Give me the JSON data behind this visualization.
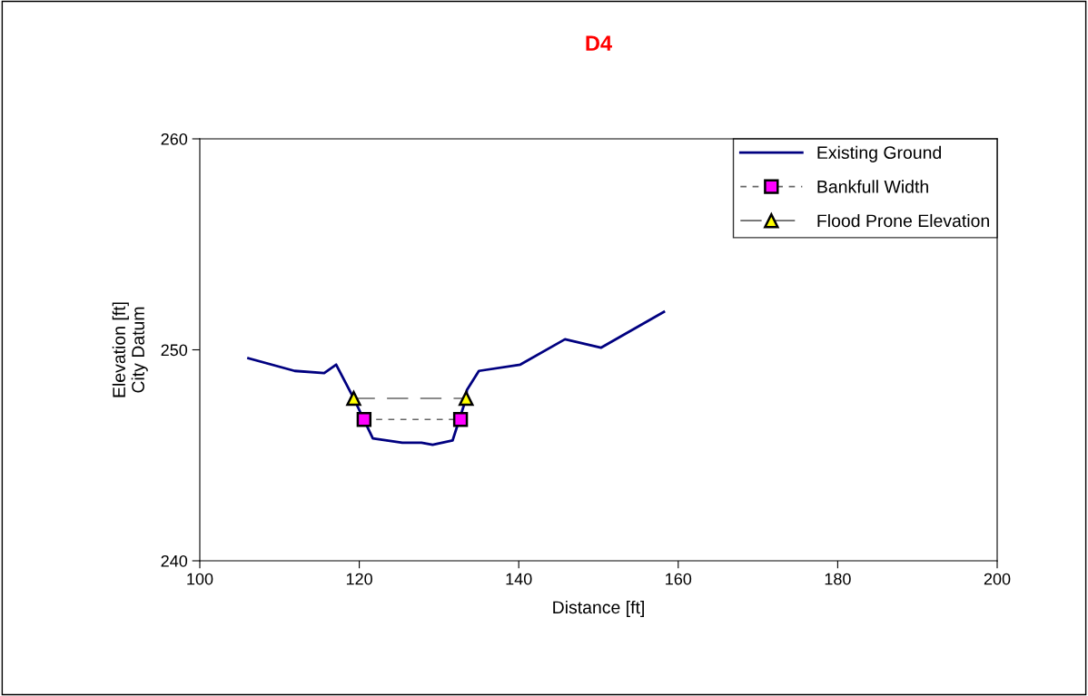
{
  "chart_data": {
    "type": "line",
    "title": "D4",
    "xlabel": "Distance [ft]",
    "ylabel": "Elevation [ft]\nCity Datum",
    "xlim": [
      100,
      200
    ],
    "xticks": [
      100,
      120,
      140,
      160,
      180,
      200
    ],
    "ylim": [
      240,
      260
    ],
    "yticks": [
      240,
      250,
      260
    ],
    "grid": false,
    "legend": "top right",
    "series": [
      {
        "name": "Existing Ground",
        "color": "#000080",
        "marker": "none",
        "line_style": "solid",
        "x": [
          106.1,
          111.9,
          115.6,
          117.1,
          119.3,
          121.7,
          125.4,
          127.8,
          129.2,
          131.7,
          133.4,
          133.5,
          135.0,
          140.2,
          145.8,
          150.3,
          158.2
        ],
        "values": [
          249.6,
          249.0,
          248.9,
          249.3,
          247.7,
          245.8,
          245.6,
          245.6,
          245.5,
          245.7,
          247.7,
          248.1,
          249.0,
          249.3,
          250.5,
          250.1,
          251.8
        ]
      },
      {
        "name": "Bankfull Width",
        "color": "#ff00ff",
        "marker": "square",
        "line_style": "dashed",
        "x": [
          120.6,
          132.7
        ],
        "values": [
          246.7,
          246.7
        ]
      },
      {
        "name": "Flood Prone Elevation",
        "color": "#ffff00",
        "marker": "triangle",
        "line_style": "longdash",
        "x": [
          119.3,
          133.4
        ],
        "values": [
          247.7,
          247.7
        ]
      }
    ]
  }
}
